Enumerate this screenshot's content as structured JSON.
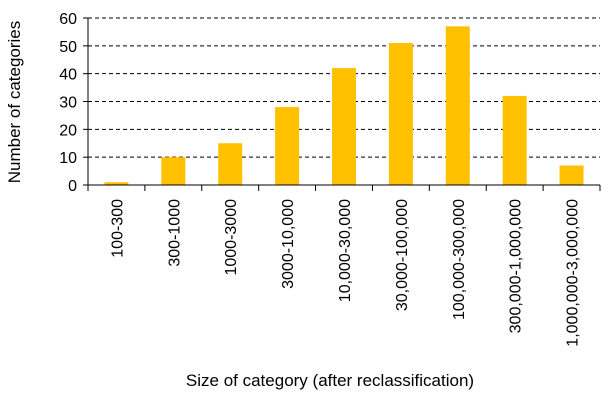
{
  "chart_data": {
    "type": "bar",
    "title": "",
    "xlabel": "Size of category (after reclassification)",
    "ylabel": "Number of categories",
    "ylim": [
      0,
      60
    ],
    "yticks": [
      0,
      10,
      20,
      30,
      40,
      50,
      60
    ],
    "grid": true,
    "legend": "none",
    "categories": [
      "100-300",
      "300-1000",
      "1000-3000",
      "3000-10,000",
      "10,000-30,000",
      "30,000-100,000",
      "100,000-300,000",
      "300,000-1,000,000",
      "1,000,000-3,000,000"
    ],
    "values": [
      1,
      10,
      15,
      28,
      42,
      51,
      57,
      32,
      7
    ],
    "bar_color": "#FFC000",
    "grid_color": "#000000"
  }
}
